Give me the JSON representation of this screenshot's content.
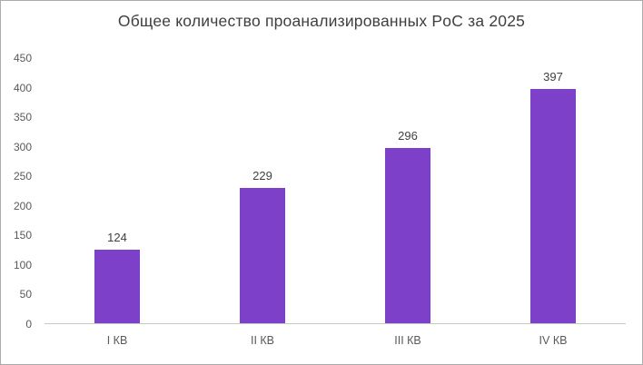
{
  "chart_data": {
    "type": "bar",
    "title": "Общее количество проанализированных PoC за 2025",
    "categories": [
      "I КВ",
      "II КВ",
      "III КВ",
      "IV КВ"
    ],
    "values": [
      124,
      229,
      296,
      397
    ],
    "ylabel": "",
    "xlabel": "",
    "ylim": [
      0,
      450
    ],
    "ytick_step": 50,
    "grid": false,
    "legend": false,
    "bar_color": "#7d40c8",
    "title_color": "#3f3f3f",
    "axis_label_color": "#595959",
    "value_label_color": "#404040",
    "frame_border_color": "#ababab",
    "axis_line_color": "#c9c9c9"
  }
}
